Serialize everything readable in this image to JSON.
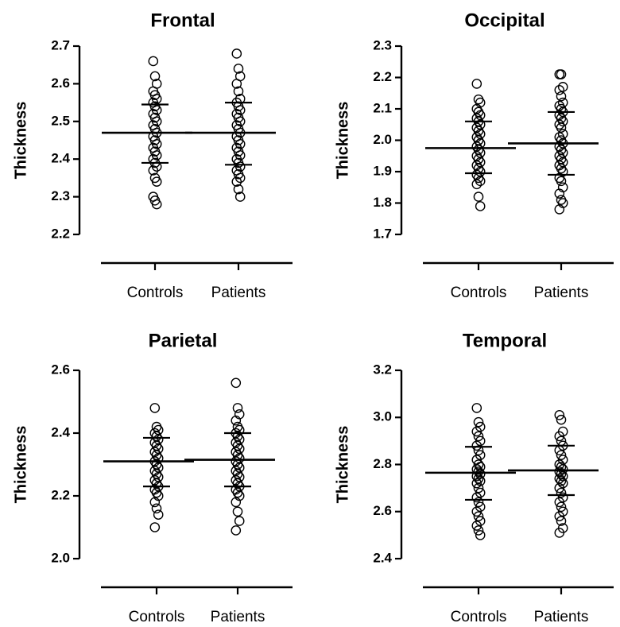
{
  "chart_data": [
    {
      "type": "scatter",
      "title": "Frontal",
      "ylabel": "Thickness",
      "categories": [
        "Controls",
        "Patients"
      ],
      "ylim": [
        2.2,
        2.7
      ],
      "yticks": [
        "2.2",
        "2.3",
        "2.4",
        "2.5",
        "2.6",
        "2.7"
      ],
      "series": [
        {
          "name": "Controls",
          "mean": 2.47,
          "sd_upper": 2.545,
          "sd_lower": 2.39,
          "values": [
            2.66,
            2.62,
            2.6,
            2.58,
            2.57,
            2.56,
            2.55,
            2.54,
            2.53,
            2.52,
            2.51,
            2.5,
            2.49,
            2.48,
            2.47,
            2.46,
            2.45,
            2.44,
            2.43,
            2.42,
            2.41,
            2.4,
            2.39,
            2.38,
            2.37,
            2.35,
            2.34,
            2.3,
            2.29,
            2.28
          ]
        },
        {
          "name": "Patients",
          "mean": 2.47,
          "sd_upper": 2.55,
          "sd_lower": 2.385,
          "values": [
            2.68,
            2.64,
            2.62,
            2.6,
            2.58,
            2.56,
            2.55,
            2.54,
            2.53,
            2.52,
            2.51,
            2.5,
            2.49,
            2.48,
            2.47,
            2.46,
            2.45,
            2.44,
            2.43,
            2.42,
            2.41,
            2.4,
            2.39,
            2.38,
            2.37,
            2.36,
            2.35,
            2.34,
            2.32,
            2.3
          ]
        }
      ]
    },
    {
      "type": "scatter",
      "title": "Occipital",
      "ylabel": "Thickness",
      "categories": [
        "Controls",
        "Patients"
      ],
      "ylim": [
        1.7,
        2.3
      ],
      "yticks": [
        "1.7",
        "1.8",
        "1.9",
        "2.0",
        "2.1",
        "2.2",
        "2.3"
      ],
      "series": [
        {
          "name": "Controls",
          "mean": 1.975,
          "sd_upper": 2.06,
          "sd_lower": 1.895,
          "values": [
            2.18,
            2.13,
            2.12,
            2.1,
            2.09,
            2.08,
            2.07,
            2.06,
            2.05,
            2.04,
            2.03,
            2.02,
            2.01,
            2.0,
            1.99,
            1.98,
            1.97,
            1.96,
            1.95,
            1.94,
            1.93,
            1.92,
            1.91,
            1.9,
            1.89,
            1.88,
            1.87,
            1.86,
            1.82,
            1.79
          ]
        },
        {
          "name": "Patients",
          "mean": 1.99,
          "sd_upper": 2.09,
          "sd_lower": 1.89,
          "values": [
            2.21,
            2.21,
            2.17,
            2.16,
            2.14,
            2.12,
            2.11,
            2.1,
            2.09,
            2.08,
            2.07,
            2.06,
            2.05,
            2.04,
            2.02,
            2.01,
            2.0,
            1.99,
            1.98,
            1.97,
            1.96,
            1.95,
            1.94,
            1.93,
            1.92,
            1.91,
            1.9,
            1.88,
            1.87,
            1.85,
            1.83,
            1.81,
            1.8,
            1.78
          ]
        }
      ]
    },
    {
      "type": "scatter",
      "title": "Parietal",
      "ylabel": "Thickness",
      "categories": [
        "Controls",
        "Patients"
      ],
      "ylim": [
        2.0,
        2.6
      ],
      "yticks": [
        "2.0",
        "2.2",
        "2.4",
        "2.6"
      ],
      "series": [
        {
          "name": "Controls",
          "mean": 2.31,
          "sd_upper": 2.385,
          "sd_lower": 2.23,
          "values": [
            2.48,
            2.42,
            2.41,
            2.4,
            2.39,
            2.38,
            2.37,
            2.36,
            2.35,
            2.34,
            2.33,
            2.32,
            2.31,
            2.3,
            2.29,
            2.28,
            2.27,
            2.26,
            2.25,
            2.24,
            2.23,
            2.22,
            2.21,
            2.2,
            2.18,
            2.16,
            2.14,
            2.1
          ]
        },
        {
          "name": "Patients",
          "mean": 2.315,
          "sd_upper": 2.4,
          "sd_lower": 2.23,
          "values": [
            2.56,
            2.48,
            2.46,
            2.44,
            2.42,
            2.41,
            2.4,
            2.39,
            2.38,
            2.37,
            2.36,
            2.35,
            2.34,
            2.33,
            2.32,
            2.31,
            2.3,
            2.29,
            2.28,
            2.27,
            2.26,
            2.25,
            2.24,
            2.23,
            2.22,
            2.21,
            2.2,
            2.18,
            2.15,
            2.12,
            2.09
          ]
        }
      ]
    },
    {
      "type": "scatter",
      "title": "Temporal",
      "ylabel": "Thickness",
      "categories": [
        "Controls",
        "Patients"
      ],
      "ylim": [
        2.4,
        3.2
      ],
      "yticks": [
        "2.4",
        "2.6",
        "2.8",
        "3.0",
        "3.2"
      ],
      "series": [
        {
          "name": "Controls",
          "mean": 2.765,
          "sd_upper": 2.875,
          "sd_lower": 2.65,
          "values": [
            3.04,
            2.98,
            2.96,
            2.94,
            2.92,
            2.9,
            2.88,
            2.86,
            2.84,
            2.82,
            2.8,
            2.79,
            2.78,
            2.77,
            2.76,
            2.75,
            2.74,
            2.73,
            2.72,
            2.7,
            2.68,
            2.66,
            2.64,
            2.62,
            2.6,
            2.58,
            2.56,
            2.54,
            2.52,
            2.5
          ]
        },
        {
          "name": "Patients",
          "mean": 2.775,
          "sd_upper": 2.88,
          "sd_lower": 2.67,
          "values": [
            3.01,
            2.99,
            2.94,
            2.92,
            2.9,
            2.88,
            2.86,
            2.84,
            2.82,
            2.8,
            2.79,
            2.78,
            2.77,
            2.76,
            2.75,
            2.74,
            2.73,
            2.72,
            2.7,
            2.68,
            2.66,
            2.64,
            2.62,
            2.6,
            2.58,
            2.56,
            2.53,
            2.51
          ]
        }
      ]
    }
  ]
}
